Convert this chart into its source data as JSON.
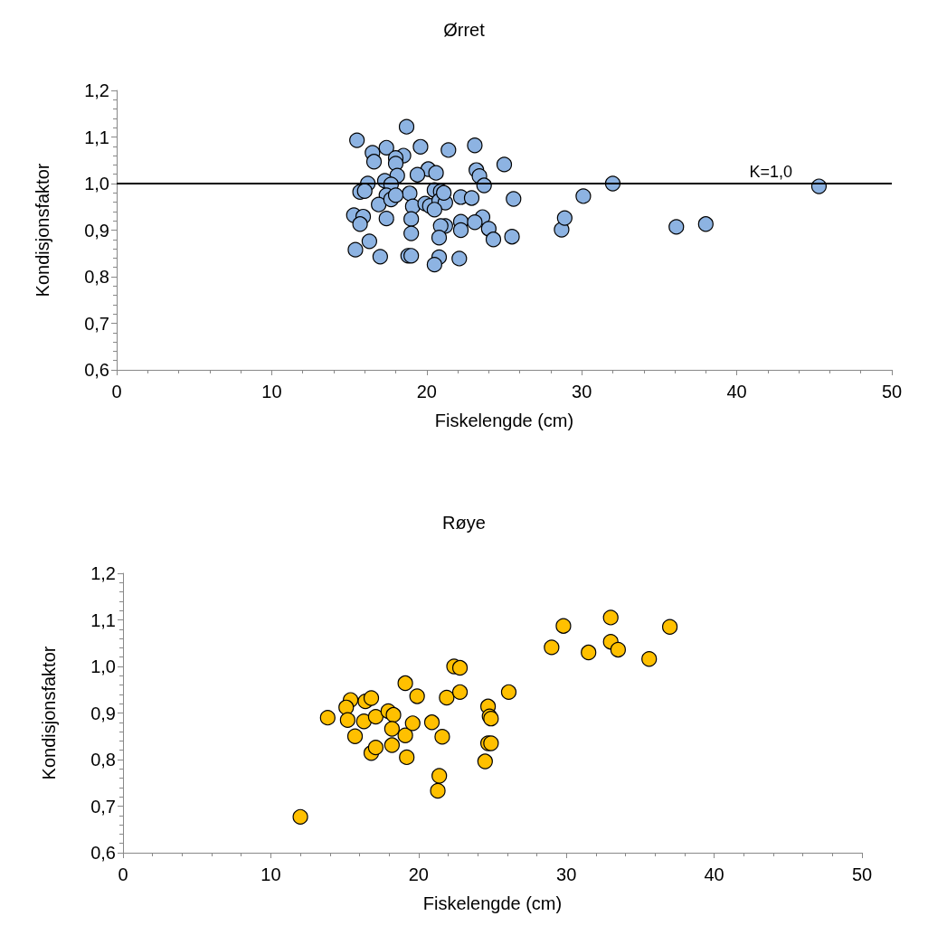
{
  "chart_data": [
    {
      "type": "scatter",
      "title": "Ørret",
      "xlabel": "Fiskelengde (cm)",
      "ylabel": "Kondisjonsfaktor",
      "marker": "circle",
      "grid": false,
      "xlim": [
        0,
        50
      ],
      "xticks": [
        0,
        10,
        20,
        30,
        40,
        50
      ],
      "ylim": [
        0.6,
        1.2
      ],
      "yticks": [
        {
          "value": 0.6,
          "label": "0,6"
        },
        {
          "value": 0.7,
          "label": "0,7"
        },
        {
          "value": 0.8,
          "label": "0,8"
        },
        {
          "value": 0.9,
          "label": "0,9"
        },
        {
          "value": 1.0,
          "label": "1,0"
        },
        {
          "value": 1.1,
          "label": "1,1"
        },
        {
          "value": 1.2,
          "label": "1,2"
        }
      ],
      "ref_lines": [
        {
          "axis": "y",
          "value": 1.0,
          "label": "K=1,0",
          "color": "#000000"
        }
      ],
      "series": [
        {
          "color": "#8db3e2",
          "x": [
            15.5,
            18.7,
            16.5,
            17.4,
            16.6,
            18.5,
            18.0,
            18.0,
            19.6,
            21.4,
            23.1,
            20.1,
            20.6,
            19.4,
            18.1,
            23.2,
            23.4,
            25.0,
            16.2,
            17.3,
            17.7,
            15.7,
            16.0,
            17.4,
            18.9,
            20.5,
            20.9,
            23.7,
            22.2,
            22.9,
            25.6,
            19.1,
            19.9,
            20.2,
            20.8,
            21.2,
            21.1,
            16.9,
            17.7,
            18.0,
            15.3,
            15.9,
            15.7,
            17.4,
            19.0,
            20.5,
            21.2,
            22.2,
            23.6,
            24.0,
            23.1,
            20.9,
            16.3,
            19.0,
            20.8,
            24.3,
            25.5,
            15.4,
            17.0,
            18.8,
            19.0,
            20.8,
            20.5,
            22.1,
            22.2,
            28.7,
            28.9,
            30.1,
            32.0,
            36.1,
            38.0,
            45.3
          ],
          "values": [
            1.093,
            1.122,
            1.066,
            1.077,
            1.047,
            1.06,
            1.055,
            1.043,
            1.079,
            1.072,
            1.082,
            1.031,
            1.023,
            1.019,
            1.017,
            1.029,
            1.016,
            1.041,
            1.0,
            1.006,
            0.998,
            0.982,
            0.984,
            0.975,
            0.979,
            0.986,
            0.983,
            0.996,
            0.971,
            0.969,
            0.967,
            0.951,
            0.957,
            0.952,
            0.963,
            0.959,
            0.98,
            0.955,
            0.966,
            0.975,
            0.932,
            0.929,
            0.913,
            0.925,
            0.924,
            0.944,
            0.909,
            0.918,
            0.928,
            0.903,
            0.917,
            0.909,
            0.876,
            0.893,
            0.884,
            0.88,
            0.886,
            0.858,
            0.843,
            0.845,
            0.845,
            0.842,
            0.826,
            0.839,
            0.9,
            0.901,
            0.926,
            0.973,
            1.0,
            0.907,
            0.913,
            0.994
          ]
        }
      ]
    },
    {
      "type": "scatter",
      "title": "Røye",
      "xlabel": "Fiskelengde (cm)",
      "ylabel": "Kondisjonsfaktor",
      "marker": "circle",
      "grid": false,
      "xlim": [
        0,
        50
      ],
      "xticks": [
        0,
        10,
        20,
        30,
        40,
        50
      ],
      "ylim": [
        0.6,
        1.2
      ],
      "yticks": [
        {
          "value": 0.6,
          "label": "0,6"
        },
        {
          "value": 0.7,
          "label": "0,7"
        },
        {
          "value": 0.8,
          "label": "0,8"
        },
        {
          "value": 0.9,
          "label": "0,9"
        },
        {
          "value": 1.0,
          "label": "1,0"
        },
        {
          "value": 1.1,
          "label": "1,1"
        },
        {
          "value": 1.2,
          "label": "1,2"
        }
      ],
      "series": [
        {
          "color": "#ffc000",
          "x": [
            12.0,
            13.85,
            15.4,
            15.1,
            15.2,
            15.7,
            16.4,
            16.8,
            16.3,
            17.1,
            16.8,
            17.1,
            17.95,
            18.3,
            18.2,
            18.2,
            19.1,
            19.2,
            19.1,
            19.6,
            19.9,
            20.9,
            21.6,
            21.9,
            21.4,
            21.3,
            22.4,
            22.8,
            22.8,
            24.7,
            24.8,
            24.9,
            24.7,
            24.9,
            24.5,
            26.1,
            29.0,
            29.8,
            31.5,
            33.0,
            33.0,
            33.5,
            35.6,
            37.0
          ],
          "values": [
            0.677,
            0.89,
            0.928,
            0.912,
            0.885,
            0.85,
            0.925,
            0.932,
            0.882,
            0.892,
            0.814,
            0.826,
            0.904,
            0.896,
            0.866,
            0.831,
            0.852,
            0.805,
            0.964,
            0.878,
            0.936,
            0.88,
            0.849,
            0.933,
            0.765,
            0.733,
            1.0,
            0.997,
            0.945,
            0.914,
            0.893,
            0.888,
            0.835,
            0.835,
            0.796,
            0.945,
            1.041,
            1.087,
            1.03,
            1.105,
            1.053,
            1.036,
            1.016,
            1.085
          ]
        }
      ]
    }
  ]
}
